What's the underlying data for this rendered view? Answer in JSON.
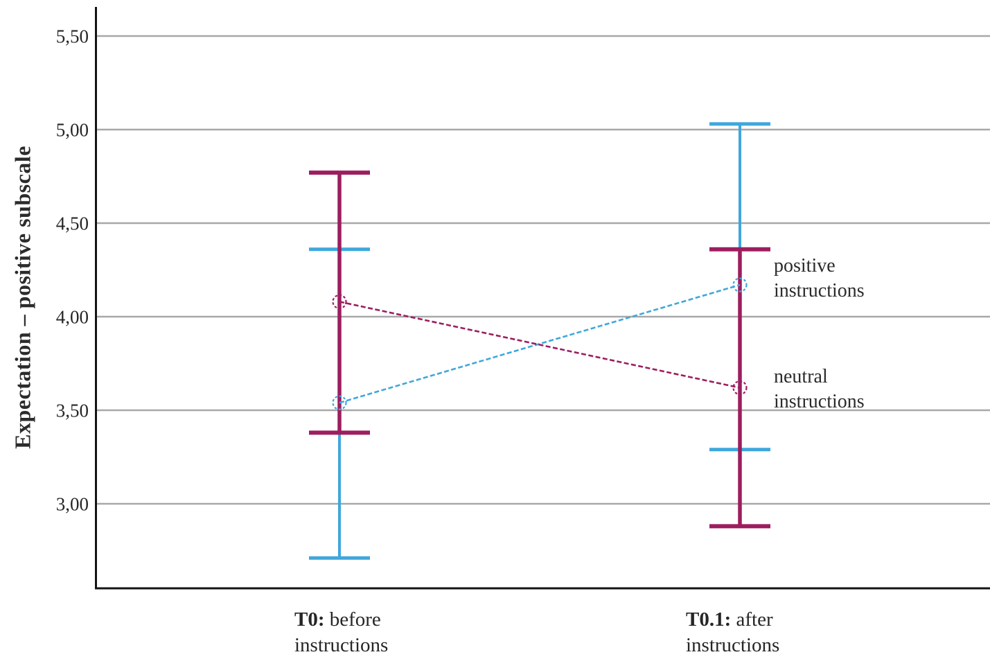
{
  "chart_data": {
    "type": "line",
    "title": "",
    "xlabel": "",
    "ylabel": "Expectation – positive subscale",
    "grid": true,
    "ylim": [
      2.55,
      5.66
    ],
    "yticks": {
      "labels": [
        "5,50",
        "5,00",
        "4,50",
        "4,00",
        "3,50",
        "3,00"
      ],
      "values": [
        5.5,
        5.0,
        4.5,
        4.0,
        3.5,
        3.0
      ]
    },
    "categories": [
      {
        "bold": "T0:",
        "rest": "before instructions",
        "full": "T0: before instructions"
      },
      {
        "bold": "T0.1:",
        "rest": "after instructions",
        "full": "T0.1: after instructions"
      }
    ],
    "legend_position": "inline-right-of-last-point",
    "series": [
      {
        "name": "positive instructions",
        "color": "#3FA7DC",
        "line_style": "dashed",
        "marker": "dashed-open-circle",
        "means": [
          3.54,
          4.17
        ],
        "ci_low": [
          2.71,
          3.29
        ],
        "ci_high": [
          4.36,
          5.03
        ]
      },
      {
        "name": "neutral instructions",
        "color": "#9C1E5F",
        "line_style": "dashed",
        "marker": "dashed-open-circle",
        "means": [
          4.08,
          3.62
        ],
        "ci_low": [
          3.38,
          2.88
        ],
        "ci_high": [
          4.77,
          4.36
        ]
      }
    ],
    "annotations": [
      {
        "text": "positive instructions"
      },
      {
        "text": "neutral instructions"
      }
    ]
  },
  "colors": {
    "background": "#ffffff",
    "gridline": "#A8A8A8",
    "axis": "#141414",
    "text": "#262626"
  }
}
